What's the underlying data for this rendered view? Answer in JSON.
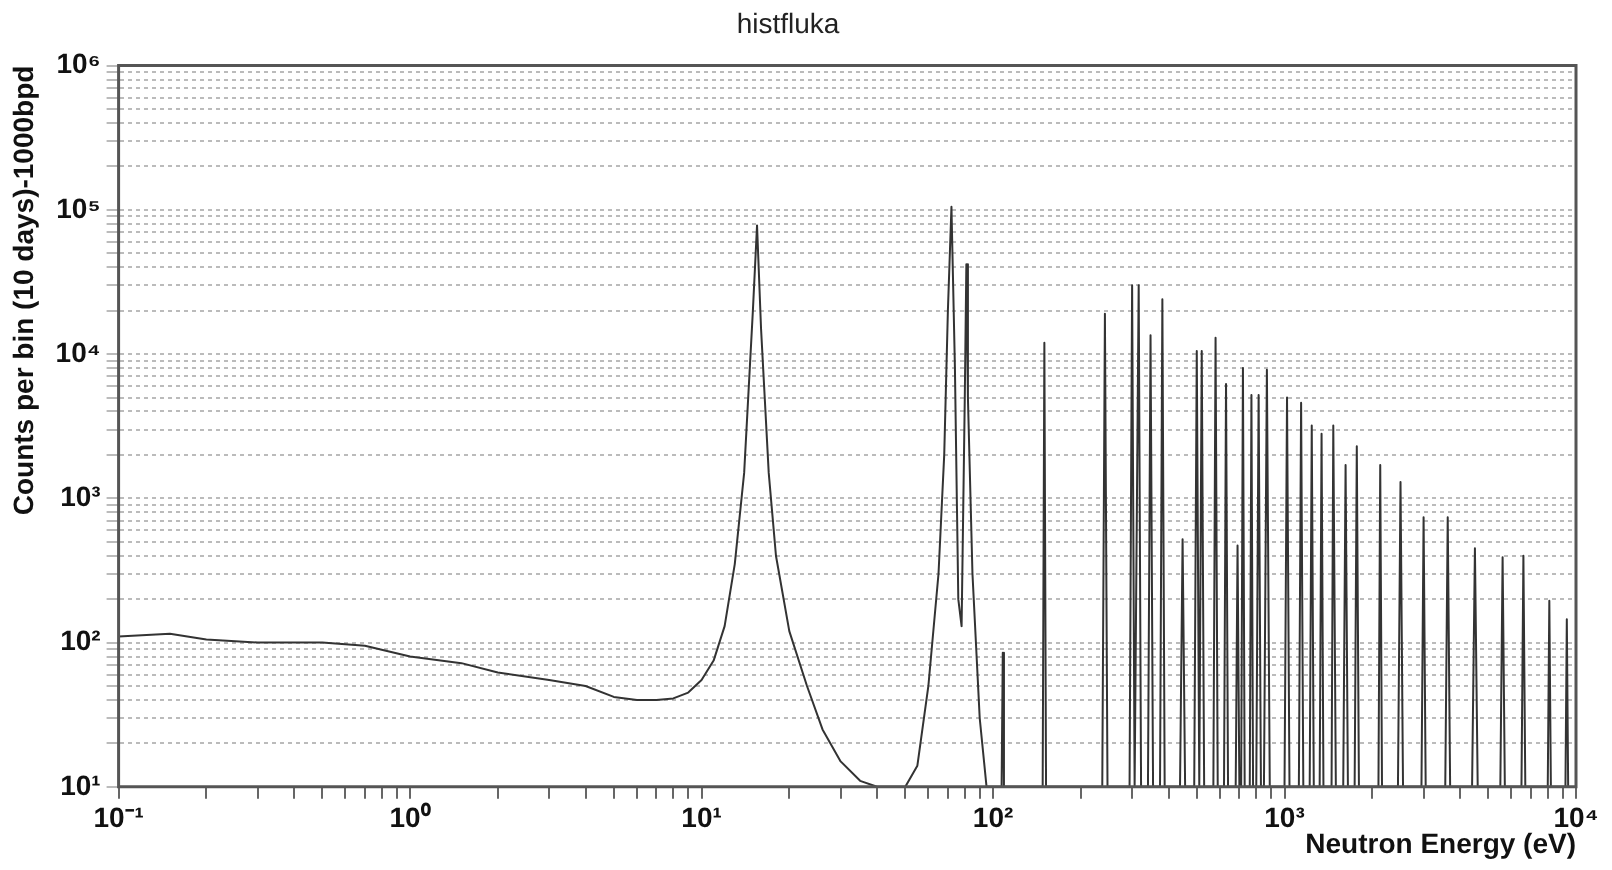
{
  "chart_data": {
    "type": "line",
    "title": "histfluka",
    "xlabel": "Neutron Energy (eV)",
    "ylabel": "Counts per bin (10 days)-1000bpd",
    "log": "xy",
    "grid": "y",
    "marker": "none",
    "line_style": "solid",
    "xlim": [
      0.1,
      10000
    ],
    "ylim": [
      10,
      1000000
    ],
    "xticks": [
      {
        "value": 0.1,
        "label": "10⁻¹"
      },
      {
        "value": 0.2,
        "label": null
      },
      {
        "value": 0.3,
        "label": null
      },
      {
        "value": 0.4,
        "label": null
      },
      {
        "value": 0.5,
        "label": null
      },
      {
        "value": 0.6,
        "label": null
      },
      {
        "value": 0.7,
        "label": null
      },
      {
        "value": 0.8,
        "label": null
      },
      {
        "value": 0.9,
        "label": null
      },
      {
        "value": 1,
        "label": "10⁰"
      },
      {
        "value": 2,
        "label": null
      },
      {
        "value": 3,
        "label": null
      },
      {
        "value": 4,
        "label": null
      },
      {
        "value": 5,
        "label": null
      },
      {
        "value": 6,
        "label": null
      },
      {
        "value": 7,
        "label": null
      },
      {
        "value": 8,
        "label": null
      },
      {
        "value": 9,
        "label": null
      },
      {
        "value": 10,
        "label": "10¹"
      },
      {
        "value": 20,
        "label": null
      },
      {
        "value": 30,
        "label": null
      },
      {
        "value": 40,
        "label": null
      },
      {
        "value": 50,
        "label": null
      },
      {
        "value": 60,
        "label": null
      },
      {
        "value": 70,
        "label": null
      },
      {
        "value": 80,
        "label": null
      },
      {
        "value": 90,
        "label": null
      },
      {
        "value": 100,
        "label": "10²"
      },
      {
        "value": 200,
        "label": null
      },
      {
        "value": 300,
        "label": null
      },
      {
        "value": 400,
        "label": null
      },
      {
        "value": 500,
        "label": null
      },
      {
        "value": 600,
        "label": null
      },
      {
        "value": 700,
        "label": null
      },
      {
        "value": 800,
        "label": null
      },
      {
        "value": 900,
        "label": null
      },
      {
        "value": 1000,
        "label": "10³"
      },
      {
        "value": 2000,
        "label": null
      },
      {
        "value": 3000,
        "label": null
      },
      {
        "value": 4000,
        "label": null
      },
      {
        "value": 5000,
        "label": null
      },
      {
        "value": 6000,
        "label": null
      },
      {
        "value": 7000,
        "label": null
      },
      {
        "value": 8000,
        "label": null
      },
      {
        "value": 9000,
        "label": null
      },
      {
        "value": 10000,
        "label": "10⁴"
      }
    ],
    "yticks": [
      {
        "value": 10,
        "label": "10¹"
      },
      {
        "value": 20,
        "label": null
      },
      {
        "value": 30,
        "label": null
      },
      {
        "value": 40,
        "label": null
      },
      {
        "value": 50,
        "label": null
      },
      {
        "value": 60,
        "label": null
      },
      {
        "value": 70,
        "label": null
      },
      {
        "value": 80,
        "label": null
      },
      {
        "value": 90,
        "label": null
      },
      {
        "value": 100,
        "label": "10²"
      },
      {
        "value": 200,
        "label": null
      },
      {
        "value": 300,
        "label": null
      },
      {
        "value": 400,
        "label": null
      },
      {
        "value": 500,
        "label": null
      },
      {
        "value": 600,
        "label": null
      },
      {
        "value": 700,
        "label": null
      },
      {
        "value": 800,
        "label": null
      },
      {
        "value": 900,
        "label": null
      },
      {
        "value": 1000,
        "label": "10³"
      },
      {
        "value": 2000,
        "label": null
      },
      {
        "value": 3000,
        "label": null
      },
      {
        "value": 4000,
        "label": null
      },
      {
        "value": 5000,
        "label": null
      },
      {
        "value": 6000,
        "label": null
      },
      {
        "value": 7000,
        "label": null
      },
      {
        "value": 8000,
        "label": null
      },
      {
        "value": 9000,
        "label": null
      },
      {
        "value": 10000,
        "label": "10⁴"
      },
      {
        "value": 20000,
        "label": null
      },
      {
        "value": 30000,
        "label": null
      },
      {
        "value": 40000,
        "label": null
      },
      {
        "value": 50000,
        "label": null
      },
      {
        "value": 60000,
        "label": null
      },
      {
        "value": 70000,
        "label": null
      },
      {
        "value": 80000,
        "label": null
      },
      {
        "value": 90000,
        "label": null
      },
      {
        "value": 100000,
        "label": "10⁵"
      },
      {
        "value": 200000,
        "label": null
      },
      {
        "value": 300000,
        "label": null
      },
      {
        "value": 400000,
        "label": null
      },
      {
        "value": 500000,
        "label": null
      },
      {
        "value": 600000,
        "label": null
      },
      {
        "value": 700000,
        "label": null
      },
      {
        "value": 800000,
        "label": null
      },
      {
        "value": 900000,
        "label": null
      },
      {
        "value": 1000000,
        "label": "10⁶"
      }
    ],
    "series": [
      {
        "color": "#333333",
        "x": [
          0.1,
          0.15,
          0.2,
          0.3,
          0.5,
          0.7,
          1,
          1.5,
          2,
          3,
          4,
          5,
          6,
          7,
          8,
          9,
          10,
          11,
          12,
          13,
          14,
          15,
          15.5,
          16,
          17,
          18,
          20,
          23,
          26,
          30,
          35,
          40,
          50,
          55,
          60,
          65,
          68,
          70,
          72,
          74,
          76,
          78,
          80,
          81,
          82,
          85,
          90,
          95,
          107,
          108,
          109,
          148,
          150,
          152,
          237,
          242,
          247,
          294,
          300,
          306,
          316,
          322,
          340,
          347,
          354,
          374,
          381,
          388,
          438,
          447,
          456,
          490,
          500,
          510,
          520,
          530,
          570,
          580,
          590,
          620,
          630,
          640,
          680,
          690,
          700,
          710,
          720,
          730,
          760,
          770,
          780,
          800,
          815,
          830,
          850,
          870,
          890,
          1000,
          1020,
          1040,
          1120,
          1140,
          1160,
          1220,
          1240,
          1260,
          1320,
          1340,
          1360,
          1450,
          1470,
          1500,
          1590,
          1620,
          1650,
          1740,
          1770,
          1800,
          2100,
          2130,
          2160,
          2450,
          2500,
          2550,
          2950,
          3000,
          3050,
          3560,
          3630,
          3700,
          4400,
          4500,
          4600,
          5500,
          5600,
          5700,
          6500,
          6600,
          6700,
          8000,
          8100,
          8200,
          9200,
          9300,
          9400
        ],
        "values": [
          110,
          115,
          105,
          100,
          100,
          95,
          80,
          72,
          62,
          55,
          50,
          42,
          40,
          40,
          41,
          45,
          55,
          75,
          130,
          350,
          1500,
          20000,
          78000,
          15000,
          1500,
          400,
          120,
          50,
          25,
          15,
          11,
          10,
          10,
          14,
          50,
          300,
          2000,
          20000,
          105000,
          8000,
          200,
          130,
          5000,
          42000,
          5000,
          300,
          30,
          10,
          10,
          85,
          10,
          10,
          12000,
          10,
          10,
          19000,
          10,
          10,
          30000,
          10,
          30000,
          10,
          10,
          13500,
          10,
          10,
          24000,
          10,
          10,
          520,
          10,
          10,
          10500,
          10,
          10500,
          10,
          10,
          13000,
          10,
          10,
          6200,
          10,
          10,
          470,
          10,
          10,
          8000,
          10,
          10,
          5200,
          10,
          10,
          5200,
          10,
          10,
          7800,
          10,
          10,
          5000,
          10,
          10,
          4600,
          10,
          10,
          3200,
          10,
          10,
          2800,
          10,
          10,
          3200,
          10,
          10,
          1700,
          10,
          10,
          2300,
          10,
          10,
          1700,
          10,
          10,
          1300,
          10,
          10,
          740,
          10,
          10,
          740,
          10,
          10,
          450,
          10,
          10,
          390,
          10,
          10,
          400,
          10,
          10,
          195,
          10,
          10,
          145,
          10
        ]
      }
    ]
  }
}
